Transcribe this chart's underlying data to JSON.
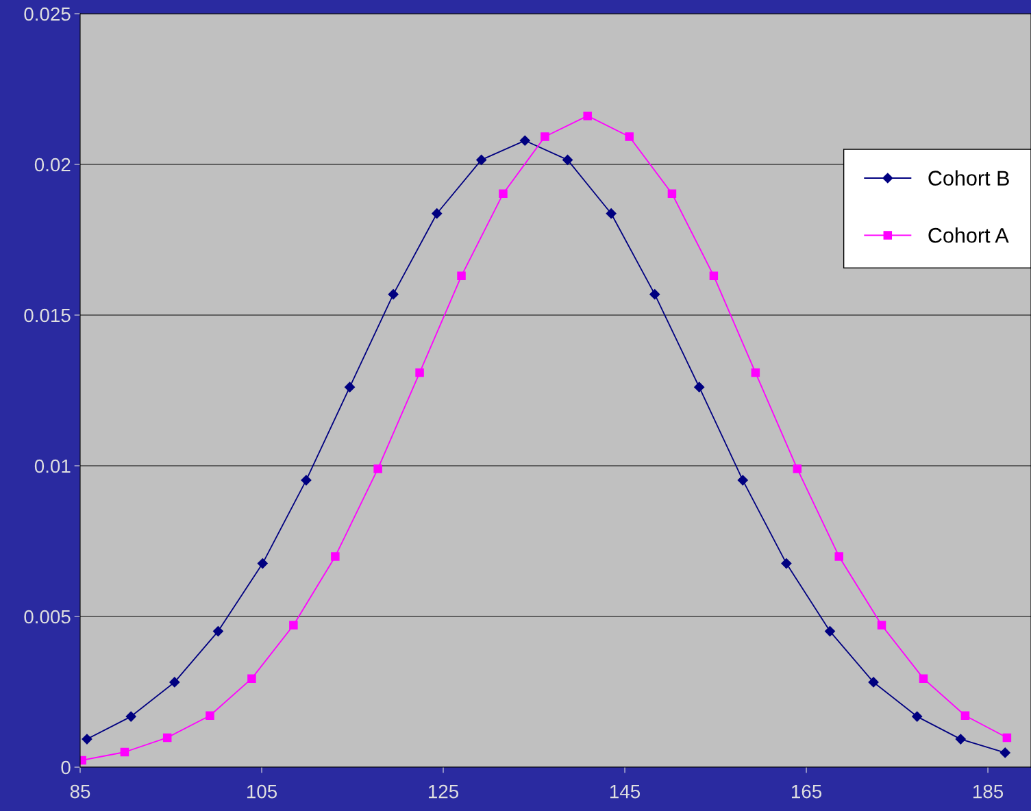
{
  "chart_data": {
    "type": "line",
    "series": [
      {
        "name": "Cohort B",
        "color": "#000080",
        "marker": "diamond",
        "x": [
          85.75,
          90.6,
          95.4,
          100.2,
          105.1,
          109.9,
          114.7,
          119.5,
          124.3,
          129.2,
          134.0,
          138.7,
          143.5,
          148.3,
          153.2,
          158.0,
          162.8,
          167.6,
          172.4,
          177.2,
          182.0,
          186.9
        ],
        "values": [
          0.00093,
          0.00168,
          0.00282,
          0.00451,
          0.00676,
          0.00952,
          0.01261,
          0.01569,
          0.01837,
          0.02015,
          0.02079,
          0.02015,
          0.01837,
          0.01569,
          0.01261,
          0.00952,
          0.00676,
          0.00451,
          0.00282,
          0.00168,
          0.00093,
          0.00048
        ]
      },
      {
        "name": "Cohort A",
        "color": "#ff00ff",
        "marker": "square",
        "x": [
          85.2,
          89.9,
          94.6,
          99.3,
          103.9,
          108.5,
          113.1,
          117.8,
          122.4,
          127.0,
          131.6,
          136.2,
          140.9,
          145.5,
          150.2,
          154.8,
          159.4,
          164.0,
          168.6,
          173.3,
          177.9,
          182.5,
          187.1
        ],
        "values": [
          0.00023,
          0.0005,
          0.00098,
          0.00171,
          0.00294,
          0.00471,
          0.00699,
          0.0099,
          0.01309,
          0.0163,
          0.01903,
          0.02092,
          0.02161,
          0.02092,
          0.01903,
          0.0163,
          0.01309,
          0.0099,
          0.00699,
          0.00471,
          0.00294,
          0.00171,
          0.00098
        ]
      }
    ],
    "xlim": [
      85,
      189.75
    ],
    "xticks": [
      85,
      105,
      125,
      145,
      165,
      185
    ],
    "ylim": [
      0,
      0.025
    ],
    "yticks": [
      0,
      0.005,
      0.01,
      0.015,
      0.02,
      0.025
    ],
    "grid": "y",
    "legend": "top right"
  }
}
